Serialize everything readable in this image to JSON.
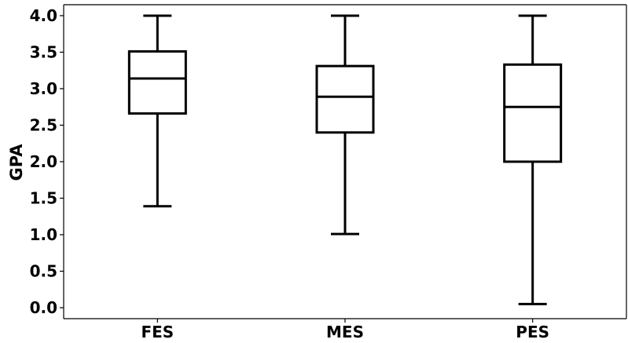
{
  "chart_data": {
    "type": "box",
    "title": "",
    "xlabel": "",
    "ylabel": "GPA",
    "ylim": [
      -0.15,
      4.15
    ],
    "yticks": [
      "0.0",
      "0.5",
      "1.0",
      "1.5",
      "2.0",
      "2.5",
      "3.0",
      "3.5",
      "4.0"
    ],
    "ytick_values": [
      0.0,
      0.5,
      1.0,
      1.5,
      2.0,
      2.5,
      3.0,
      3.5,
      4.0
    ],
    "categories": [
      "FES",
      "MES",
      "PES"
    ],
    "boxes": [
      {
        "category": "FES",
        "whisker_low": 1.39,
        "q1": 2.66,
        "median": 3.14,
        "q3": 3.51,
        "whisker_high": 4.0
      },
      {
        "category": "MES",
        "whisker_low": 1.01,
        "q1": 2.4,
        "median": 2.89,
        "q3": 3.31,
        "whisker_high": 4.0
      },
      {
        "category": "PES",
        "whisker_low": 0.05,
        "q1": 2.0,
        "median": 2.75,
        "q3": 3.33,
        "whisker_high": 4.0
      }
    ],
    "grid": false,
    "legend": "none",
    "colors": {
      "line": "#000000",
      "background": "#ffffff"
    }
  }
}
